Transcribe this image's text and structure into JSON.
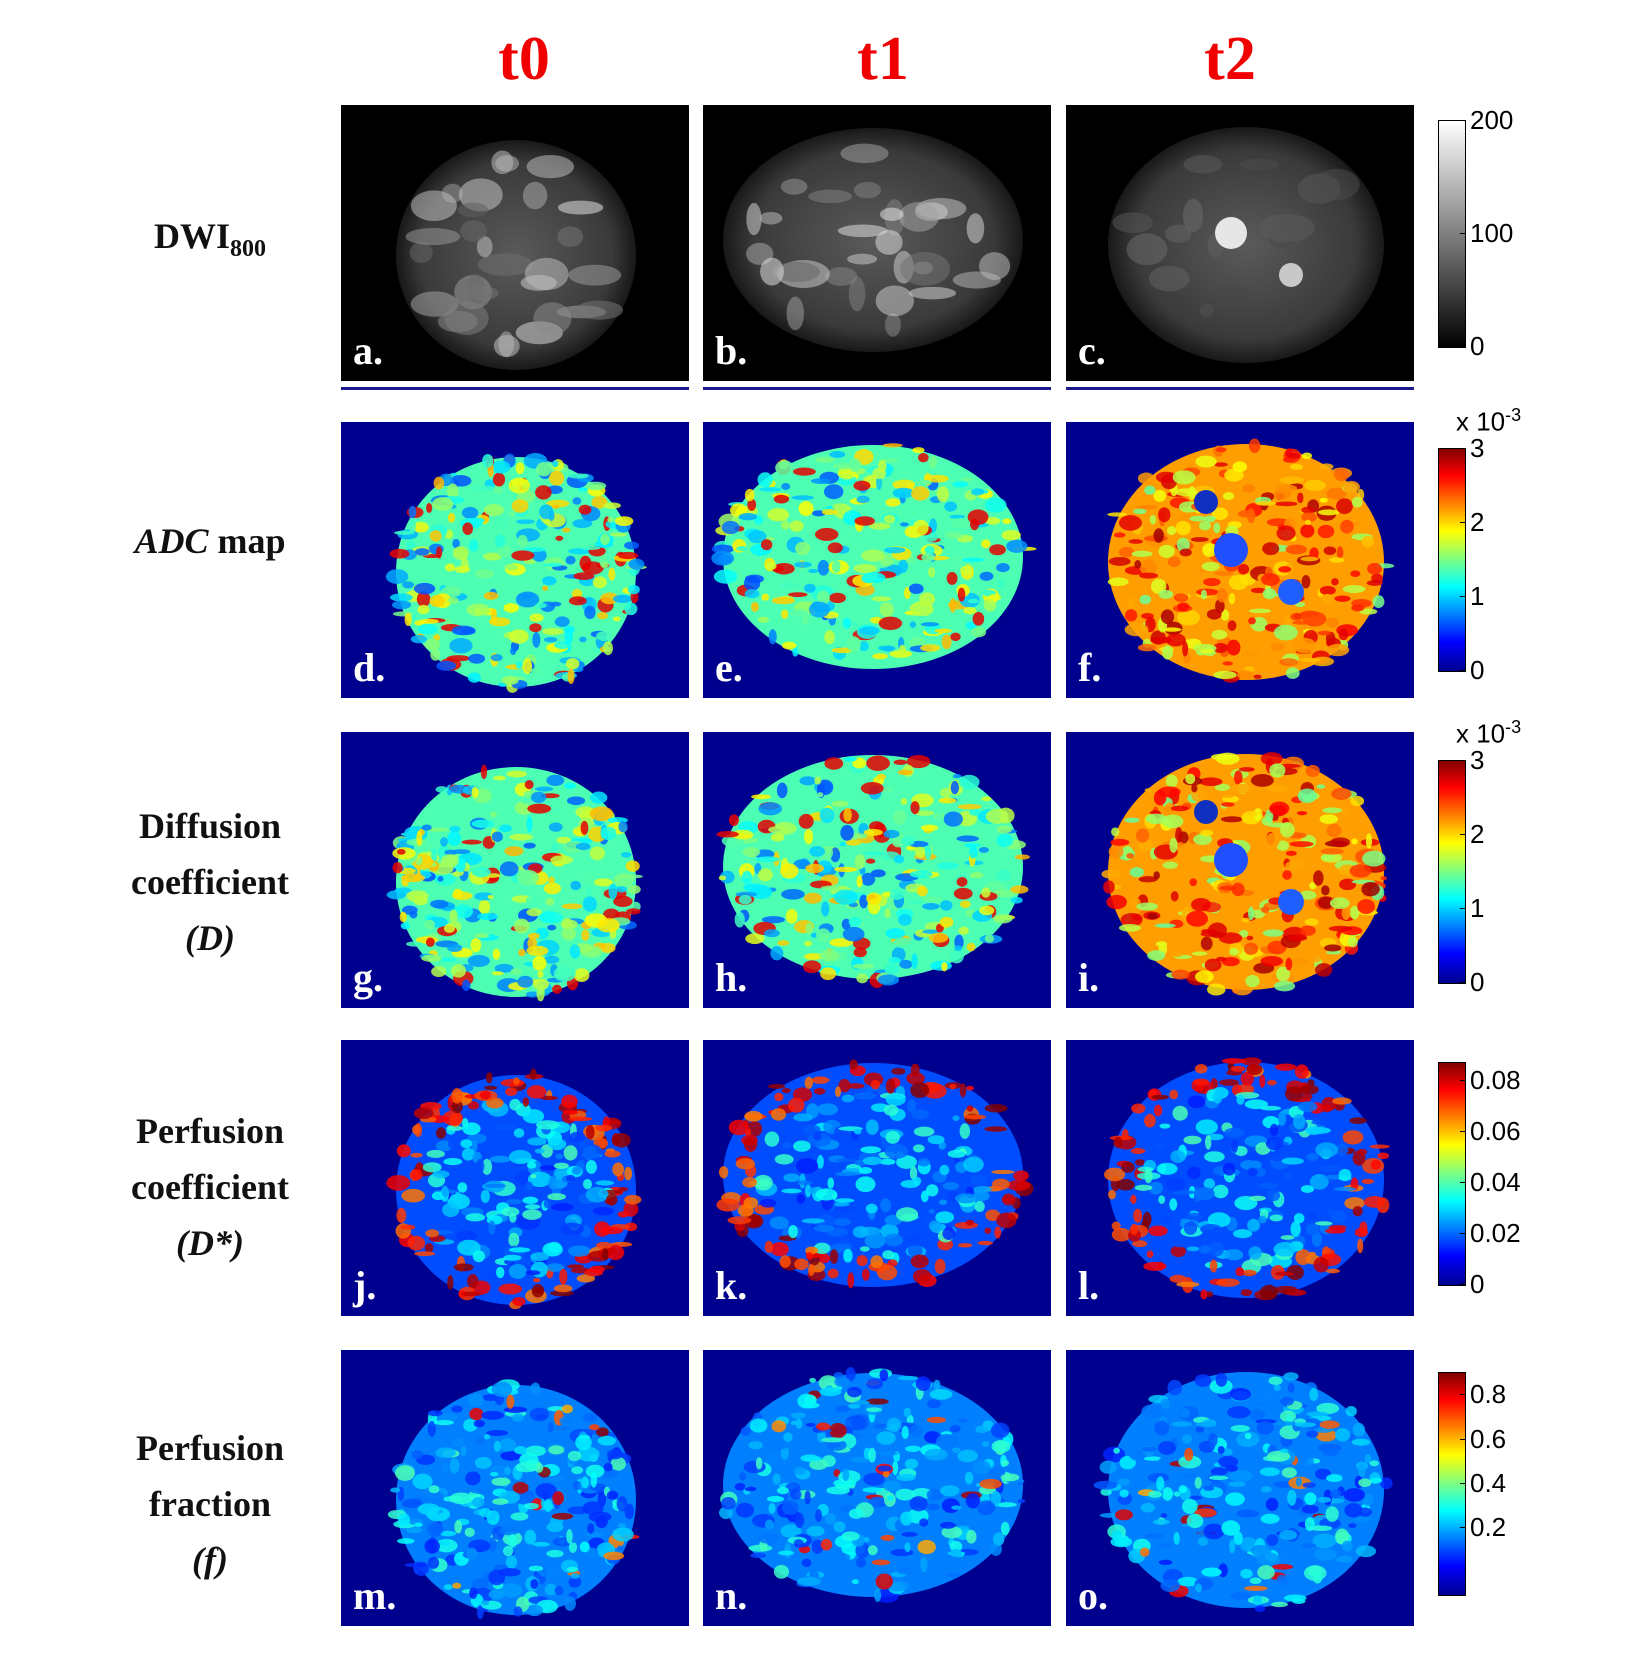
{
  "columns": [
    "t0",
    "t1",
    "t2"
  ],
  "rows": [
    {
      "label_parts": [
        "DWI",
        "800"
      ],
      "panels": [
        "a.",
        "b.",
        "c."
      ]
    },
    {
      "label_parts": [
        "ADC",
        " map"
      ],
      "panels": [
        "d.",
        "e.",
        "f."
      ]
    },
    {
      "label_lines": [
        "Diffusion",
        "coefficient",
        "(D)"
      ],
      "panels": [
        "g.",
        "h.",
        "i."
      ]
    },
    {
      "label_lines": [
        "Perfusion",
        "coefficient",
        "(D*)"
      ],
      "panels": [
        "j.",
        "k.",
        "l."
      ]
    },
    {
      "label_lines": [
        "Perfusion",
        "fraction",
        "(f)"
      ],
      "panels": [
        "m.",
        "n.",
        "o."
      ]
    }
  ],
  "colorbars": [
    {
      "scale": "gray",
      "ticks": [
        "200",
        "100",
        "0"
      ]
    },
    {
      "scale": "jet",
      "multiplier": "x 10",
      "exponent": "-3",
      "ticks": [
        "3",
        "2",
        "1",
        "0"
      ]
    },
    {
      "scale": "jet",
      "multiplier": "x 10",
      "exponent": "-3",
      "ticks": [
        "3",
        "2",
        "1",
        "0"
      ]
    },
    {
      "scale": "jet",
      "ticks": [
        "0.08",
        "0.06",
        "0.04",
        "0.02",
        "0"
      ]
    },
    {
      "scale": "jet",
      "ticks": [
        "0.8",
        "0.6",
        "0.4",
        "0.2"
      ]
    }
  ],
  "colors": {
    "heading": "#f00000",
    "map_background": "#00008f",
    "separator": "#1a1a8c"
  }
}
